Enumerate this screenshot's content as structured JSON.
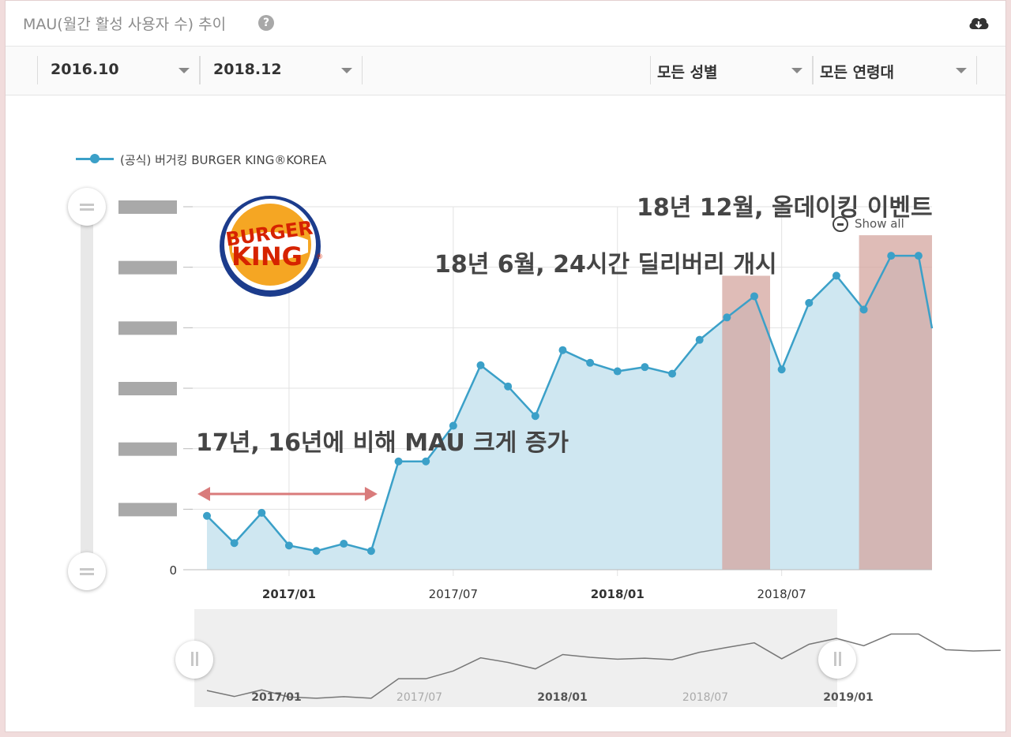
{
  "header": {
    "title": "MAU(월간 활성 사용자 수) 추이",
    "help_icon": "question-circle-icon",
    "download_icon": "cloud-download-icon"
  },
  "filters": {
    "start_month": "2016.10",
    "end_month": "2018.12",
    "gender": "모든 성별",
    "age": "모든 연령대"
  },
  "legend": {
    "label": "(공식) 버거킹 BURGER KING®KOREA"
  },
  "show_all": "Show all",
  "annotations": {
    "note_2017": "17년, 16년에 비해 MAU 크게 증가",
    "note_2018_06": "18년 6월, 24시간 딜리버리 개시",
    "note_2018_12": "18년 12월, 올데이킹 이벤트"
  },
  "logo": {
    "top_text": "BURGER",
    "bottom_text": "KING",
    "mark": "®"
  },
  "colors": {
    "series": "#3ba0c8",
    "area": "#cfe7f1",
    "highlight": "#d4a59f",
    "arrow": "#d97b7b"
  },
  "chart_data": {
    "type": "area",
    "x": [
      "2016/10",
      "2016/11",
      "2016/12",
      "2017/01",
      "2017/02",
      "2017/03",
      "2017/04",
      "2017/05",
      "2017/06",
      "2017/07",
      "2017/08",
      "2017/09",
      "2017/10",
      "2017/11",
      "2017/12",
      "2018/01",
      "2018/02",
      "2018/03",
      "2018/04",
      "2018/05",
      "2018/06",
      "2018/07",
      "2018/08",
      "2018/09",
      "2018/10",
      "2018/11",
      "2018/12"
    ],
    "series": [
      {
        "name": "(공식) 버거킹 BURGER KING®KOREA",
        "values": [
          0.89,
          0.44,
          0.94,
          0.4,
          0.31,
          0.43,
          0.31,
          1.79,
          1.79,
          2.38,
          3.38,
          3.03,
          2.54,
          3.63,
          3.42,
          3.28,
          3.35,
          3.24,
          3.8,
          4.17,
          4.52,
          3.31,
          4.41,
          4.86,
          4.3,
          5.19,
          5.19
        ]
      }
    ],
    "y_tick_labels": [
      "0"
    ],
    "x_tick_labels": [
      "2017/01",
      "2017/07",
      "2018/01",
      "2018/07"
    ],
    "ylim": [
      0,
      6
    ],
    "grid": true,
    "legend_position": "top-left",
    "highlight_ranges": [
      [
        "2018/05",
        "2018/06"
      ],
      [
        "2018/10",
        "2018/12"
      ]
    ],
    "annotation_arrow": [
      "2016/10",
      "2017/04"
    ],
    "navigator": {
      "x_tick_labels": [
        "2017/01",
        "2017/07",
        "2018/01",
        "2018/07",
        "2019/01"
      ],
      "values": [
        0.89,
        0.44,
        0.94,
        0.4,
        0.31,
        0.43,
        0.31,
        1.79,
        1.79,
        2.38,
        3.38,
        3.03,
        2.54,
        3.63,
        3.42,
        3.28,
        3.35,
        3.24,
        3.8,
        4.17,
        4.52,
        3.31,
        4.41,
        4.86,
        4.3,
        5.19,
        5.19,
        4.0,
        3.9,
        3.95
      ]
    }
  }
}
